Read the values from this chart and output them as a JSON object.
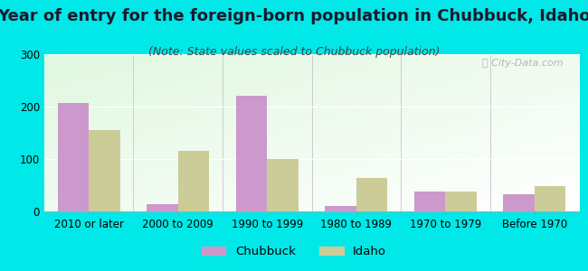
{
  "title": "Year of entry for the foreign-born population in Chubbuck, Idaho",
  "subtitle": "(Note: State values scaled to Chubbuck population)",
  "categories": [
    "2010 or later",
    "2000 to 2009",
    "1990 to 1999",
    "1980 to 1989",
    "1970 to 1979",
    "Before 1970"
  ],
  "chubbuck_values": [
    207,
    13,
    220,
    11,
    38,
    32
  ],
  "idaho_values": [
    155,
    115,
    100,
    63,
    38,
    48
  ],
  "chubbuck_color": "#cc99cc",
  "idaho_color": "#cccc99",
  "background_outer": "#00e8e8",
  "ylim": [
    0,
    300
  ],
  "yticks": [
    0,
    100,
    200,
    300
  ],
  "bar_width": 0.35,
  "title_fontsize": 13,
  "subtitle_fontsize": 9,
  "tick_fontsize": 8.5,
  "legend_fontsize": 9.5
}
